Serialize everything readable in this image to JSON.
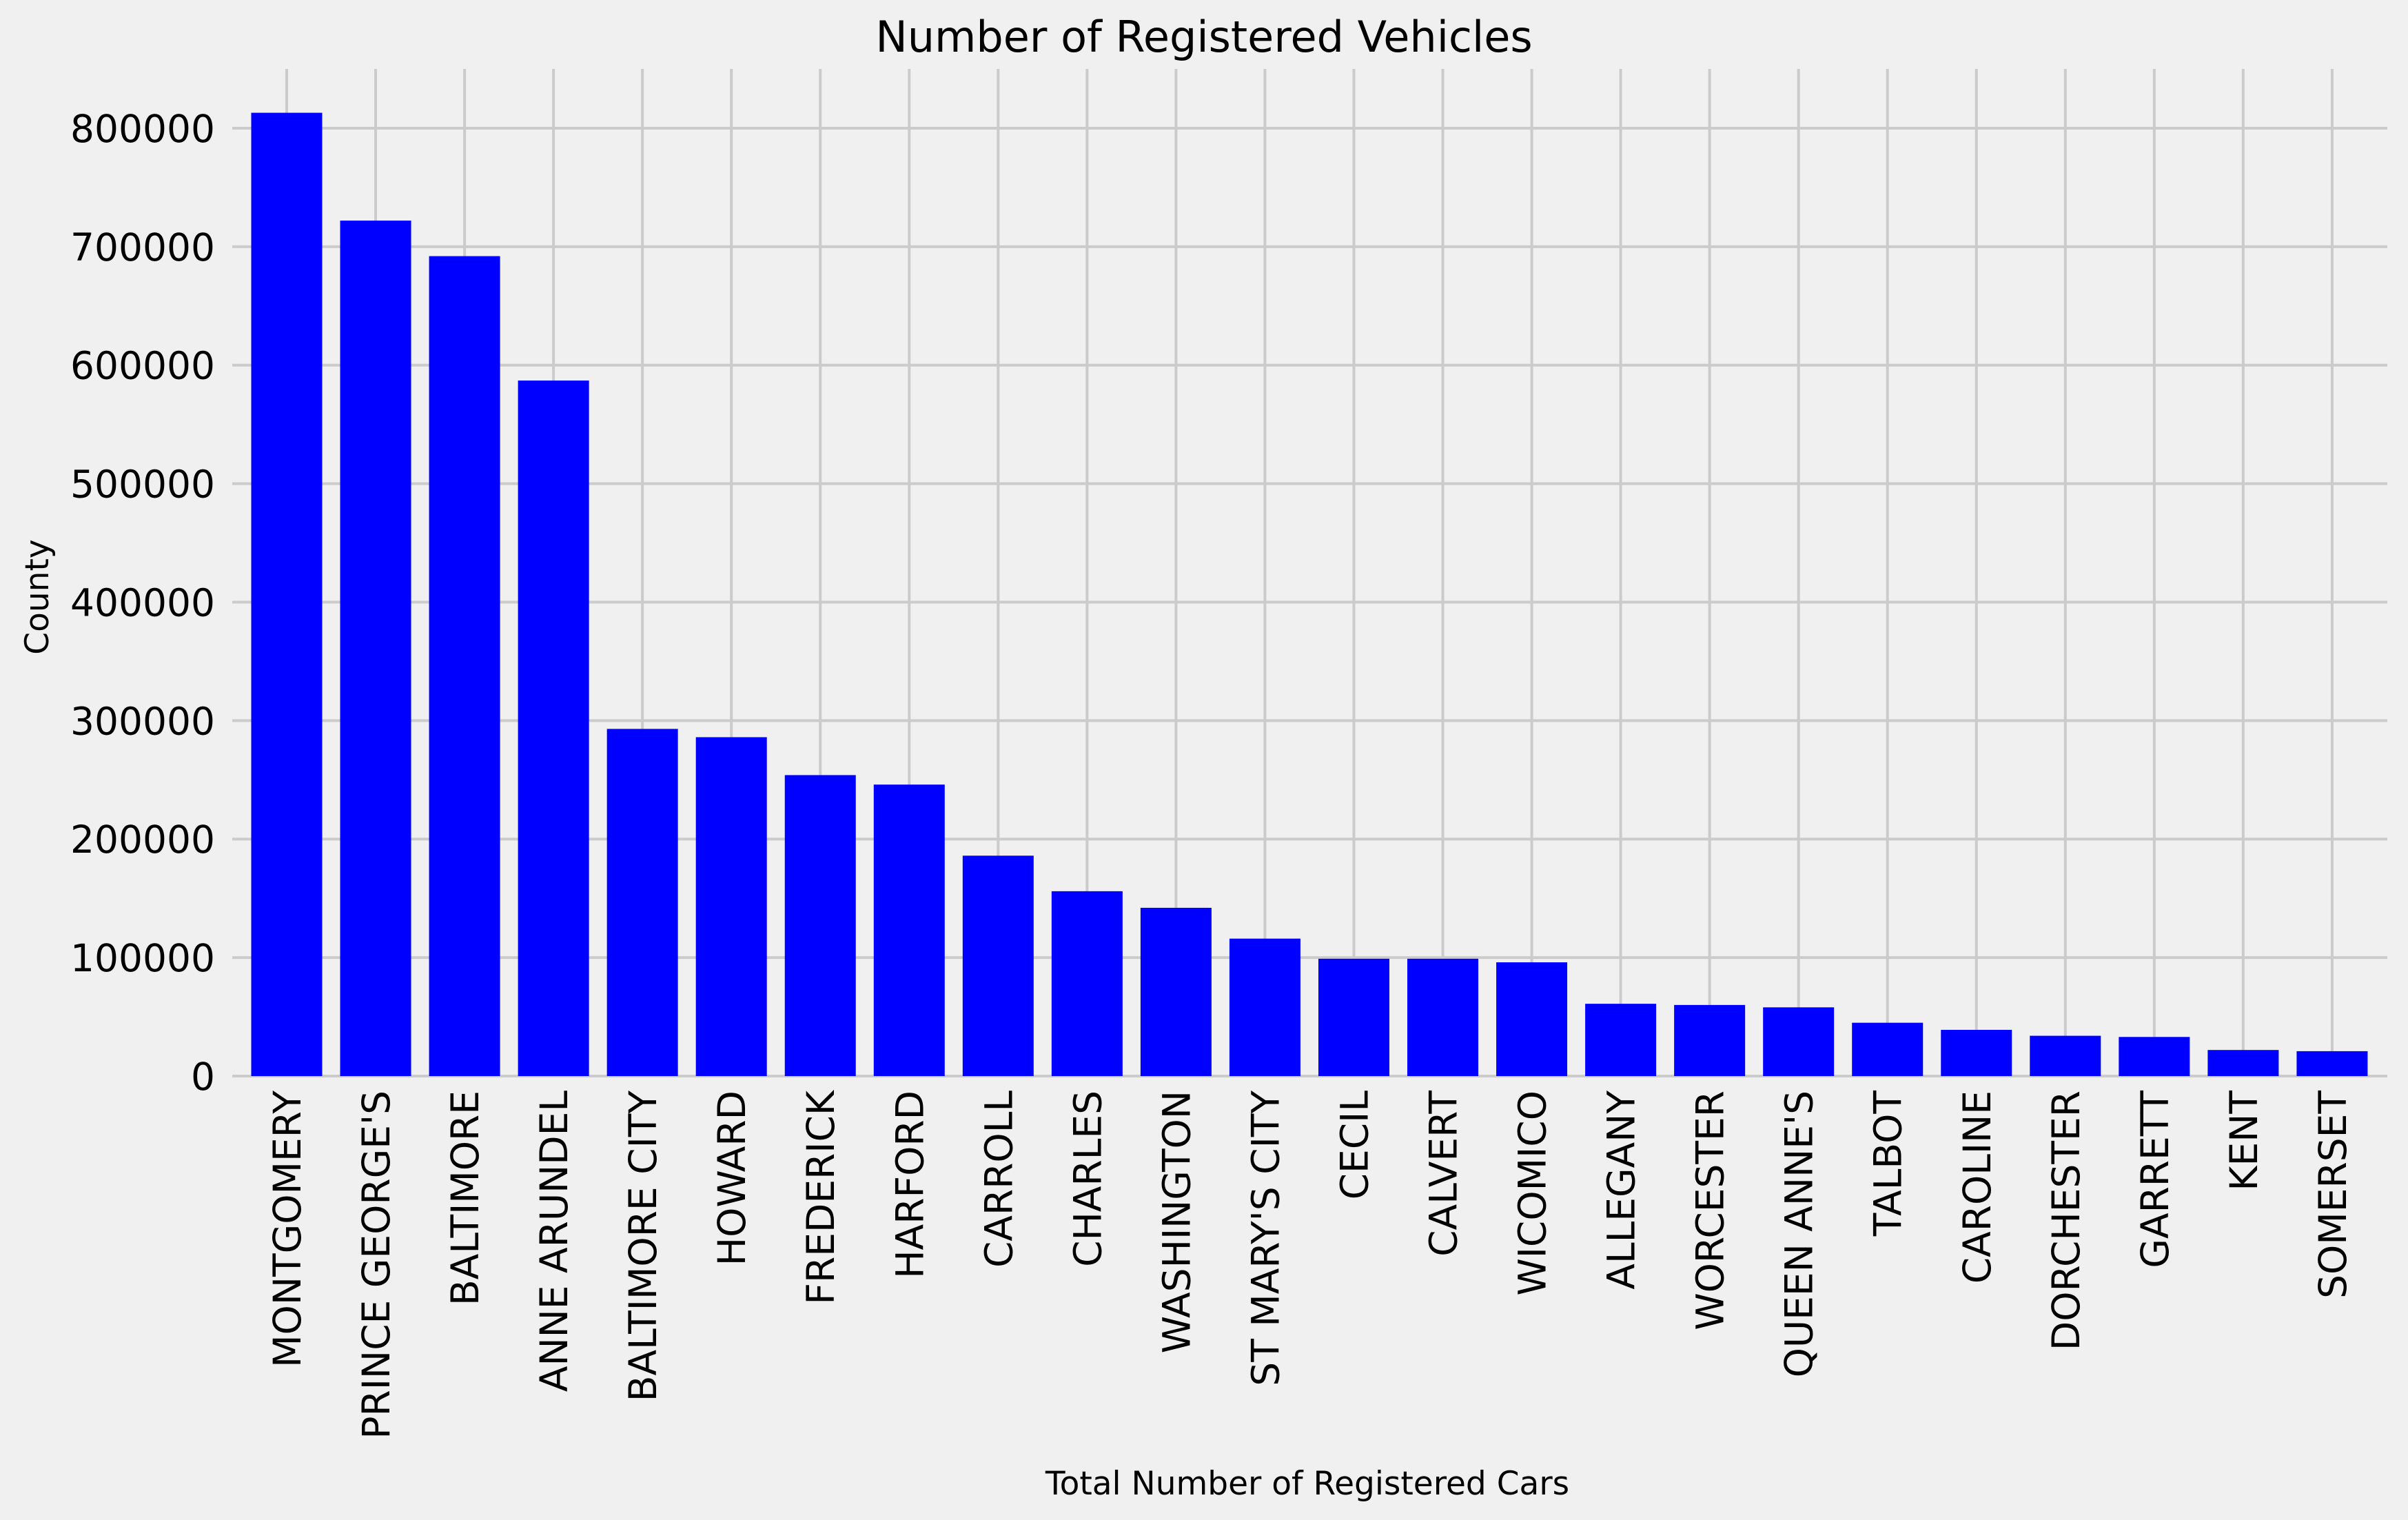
{
  "chart_data": {
    "type": "bar",
    "title": "Number of Registered Vehicles",
    "xlabel": "Total Number of Registered Cars",
    "ylabel": "County",
    "ylim": [
      0,
      850000
    ],
    "yticks": [
      0,
      100000,
      200000,
      300000,
      400000,
      500000,
      600000,
      700000,
      800000
    ],
    "grid": true,
    "bar_color": "#0000ff",
    "background_color": "#f0f0f0",
    "grid_color": "#cbcbcb",
    "categories": [
      "MONTGOMERY",
      "PRINCE GEORGE'S",
      "BALTIMORE",
      "ANNE ARUNDEL",
      "BALTIMORE CITY",
      "HOWARD",
      "FREDERICK",
      "HARFORD",
      "CARROLL",
      "CHARLES",
      "WASHINGTON",
      "ST MARY'S CITY",
      "CECIL",
      "CALVERT",
      "WICOMICO",
      "ALLEGANY",
      "WORCESTER",
      "QUEEN ANNE'S",
      "TALBOT",
      "CAROLINE",
      "DORCHESTER",
      "GARRETT",
      "KENT",
      "SOMERSET"
    ],
    "values": [
      813000,
      722000,
      692000,
      587000,
      293000,
      286000,
      254000,
      246000,
      186000,
      156000,
      142000,
      116000,
      99000,
      99000,
      96000,
      61000,
      60000,
      58000,
      45000,
      39000,
      34000,
      33000,
      22000,
      21000
    ]
  }
}
